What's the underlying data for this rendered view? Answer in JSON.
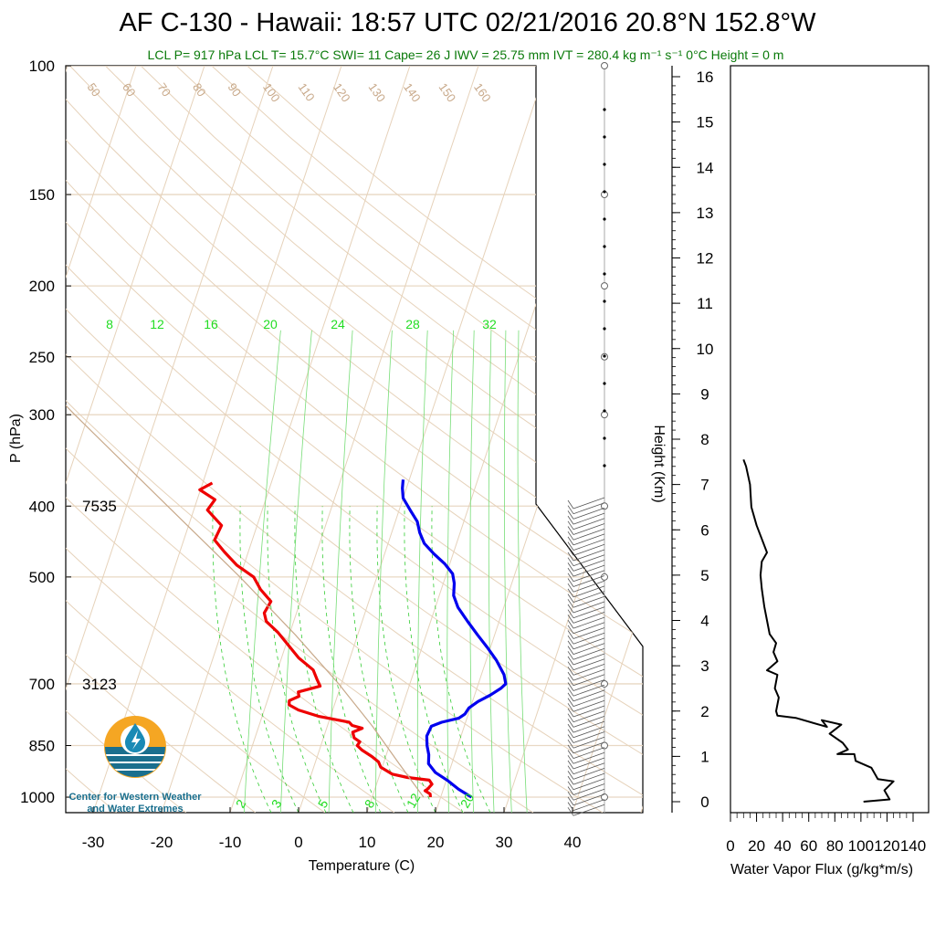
{
  "title": "AF C-130 - Hawaii: 18:57 UTC 02/21/2016  20.8°N 152.8°W",
  "subtitle": "LCL P= 917 hPa  LCL T= 15.7°C  SWI= 11  Cape= 26 J  IWV = 25.75 mm  IVT = 280.4 kg m⁻¹ s⁻¹  0°C Height = 0 m",
  "logo": {
    "line1": "Center for Western Weather",
    "line2": "and Water Extremes",
    "colors": {
      "orange": "#f5a623",
      "blue": "#1a6f8e"
    }
  },
  "height_annotations": [
    {
      "label": "7535",
      "pressure": 400
    },
    {
      "label": "3123",
      "pressure": 700
    }
  ],
  "isotherm_labels": [
    "50",
    "60",
    "70",
    "80",
    "90",
    "100",
    "110",
    "120",
    "130",
    "140",
    "150",
    "160"
  ],
  "mixing_ratio_labels": [
    "8",
    "12",
    "16",
    "20",
    "24",
    "28",
    "32"
  ],
  "mixing_ratio_bottom_labels": [
    "2",
    "3",
    "5",
    "8",
    "12",
    "20"
  ],
  "chart_data": [
    {
      "type": "line",
      "chart": "skew-t",
      "xlabel": "Temperature (C)",
      "ylabel": "P (hPa)",
      "xlim": [
        -34,
        41
      ],
      "ylim": [
        1050,
        100
      ],
      "y_scale": "log",
      "x_ticks": [
        "-30",
        "-20",
        "-10",
        "0",
        "10",
        "20",
        "30",
        "40"
      ],
      "y_ticks": [
        "100",
        "150",
        "200",
        "250",
        "300",
        "400",
        "500",
        "700",
        "850",
        "1000"
      ],
      "grid": true,
      "series": [
        {
          "role": "temperature",
          "color": "#0000ee",
          "points": [
            [
              1000,
              24.5
            ],
            [
              975,
              22.2
            ],
            [
              950,
              20.3
            ],
            [
              925,
              18.0
            ],
            [
              900,
              16.6
            ],
            [
              875,
              16.2
            ],
            [
              850,
              15.5
            ],
            [
              825,
              15.0
            ],
            [
              800,
              15.2
            ],
            [
              790,
              16.5
            ],
            [
              780,
              18.8
            ],
            [
              770,
              19.5
            ],
            [
              755,
              19.8
            ],
            [
              740,
              20.8
            ],
            [
              725,
              22.3
            ],
            [
              710,
              23.5
            ],
            [
              700,
              24.0
            ],
            [
              680,
              23.3
            ],
            [
              650,
              21.5
            ],
            [
              625,
              19.6
            ],
            [
              600,
              17.5
            ],
            [
              575,
              15.4
            ],
            [
              550,
              13.3
            ],
            [
              530,
              12.1
            ],
            [
              510,
              11.6
            ],
            [
              495,
              10.9
            ],
            [
              480,
              9.3
            ],
            [
              465,
              7.2
            ],
            [
              450,
              5.3
            ],
            [
              435,
              4.1
            ],
            [
              420,
              3.2
            ],
            [
              405,
              1.6
            ],
            [
              390,
              0.0
            ],
            [
              378,
              -0.6
            ],
            [
              368,
              -0.9
            ]
          ]
        },
        {
          "role": "dewpoint",
          "color": "#ee0000",
          "points": [
            [
              1000,
              18.5
            ],
            [
              990,
              18.3
            ],
            [
              980,
              17.4
            ],
            [
              975,
              17.7
            ],
            [
              960,
              18.1
            ],
            [
              948,
              17.5
            ],
            [
              940,
              14.2
            ],
            [
              930,
              11.8
            ],
            [
              910,
              9.8
            ],
            [
              895,
              9.2
            ],
            [
              880,
              8.0
            ],
            [
              862,
              6.2
            ],
            [
              850,
              5.3
            ],
            [
              840,
              5.5
            ],
            [
              830,
              4.5
            ],
            [
              815,
              4.0
            ],
            [
              805,
              5.2
            ],
            [
              798,
              3.6
            ],
            [
              790,
              3.0
            ],
            [
              775,
              -1.8
            ],
            [
              760,
              -5.0
            ],
            [
              748,
              -6.6
            ],
            [
              738,
              -6.8
            ],
            [
              728,
              -5.6
            ],
            [
              718,
              -5.9
            ],
            [
              705,
              -3.0
            ],
            [
              690,
              -3.8
            ],
            [
              670,
              -4.8
            ],
            [
              645,
              -7.5
            ],
            [
              620,
              -9.6
            ],
            [
              595,
              -11.8
            ],
            [
              575,
              -14.0
            ],
            [
              560,
              -14.7
            ],
            [
              540,
              -14.3
            ],
            [
              520,
              -16.4
            ],
            [
              500,
              -18.0
            ],
            [
              482,
              -21.0
            ],
            [
              462,
              -23.5
            ],
            [
              445,
              -25.5
            ],
            [
              425,
              -25.2
            ],
            [
              405,
              -28.0
            ],
            [
              392,
              -27.4
            ],
            [
              380,
              -30.1
            ],
            [
              372,
              -28.6
            ]
          ]
        },
        {
          "role": "parcel",
          "color": "#c8a98a",
          "points": [
            [
              1000,
              17.5
            ],
            [
              900,
              12.3
            ],
            [
              800,
              6.6
            ],
            [
              700,
              -0.4
            ],
            [
              600,
              -9.1
            ],
            [
              500,
              -20.0
            ],
            [
              400,
              -34.0
            ],
            [
              300,
              -52.0
            ],
            [
              230,
              -68.0
            ],
            [
              200,
              -70.0
            ],
            [
              150,
              -74.0
            ],
            [
              100,
              -78.5
            ]
          ]
        }
      ]
    },
    {
      "type": "line",
      "xlabel": "Water Vapor Flux (g/kg*m/s)",
      "ylabel": "Height (Km)",
      "xlim": [
        0,
        140
      ],
      "ylim": [
        -0.3,
        16.3
      ],
      "x_ticks": [
        "0",
        "20",
        "40",
        "60",
        "80",
        "100",
        "120",
        "140"
      ],
      "y_ticks": [
        "0",
        "1",
        "2",
        "3",
        "4",
        "5",
        "6",
        "7",
        "8",
        "9",
        "10",
        "11",
        "12",
        "13",
        "14",
        "15",
        "16"
      ],
      "series": [
        {
          "role": "flux",
          "color": "#000000",
          "points": [
            [
              102,
              0.0
            ],
            [
              122,
              0.05
            ],
            [
              118,
              0.25
            ],
            [
              125,
              0.45
            ],
            [
              113,
              0.5
            ],
            [
              108,
              0.75
            ],
            [
              96,
              0.9
            ],
            [
              95,
              1.05
            ],
            [
              82,
              1.05
            ],
            [
              90,
              1.15
            ],
            [
              86,
              1.3
            ],
            [
              76,
              1.5
            ],
            [
              85,
              1.7
            ],
            [
              70,
              1.8
            ],
            [
              74,
              1.65
            ],
            [
              50,
              1.85
            ],
            [
              36,
              1.9
            ],
            [
              35,
              2.0
            ],
            [
              37,
              2.3
            ],
            [
              34,
              2.5
            ],
            [
              36,
              2.8
            ],
            [
              28,
              2.9
            ],
            [
              36,
              3.1
            ],
            [
              33,
              3.3
            ],
            [
              35,
              3.5
            ],
            [
              30,
              3.7
            ],
            [
              28,
              4.0
            ],
            [
              26,
              4.3
            ],
            [
              24,
              4.7
            ],
            [
              23,
              5.0
            ],
            [
              24,
              5.3
            ],
            [
              28,
              5.5
            ],
            [
              24,
              5.8
            ],
            [
              20,
              6.1
            ],
            [
              16,
              6.5
            ],
            [
              15,
              7.0
            ],
            [
              12,
              7.4
            ],
            [
              10,
              7.55
            ]
          ]
        }
      ]
    }
  ]
}
